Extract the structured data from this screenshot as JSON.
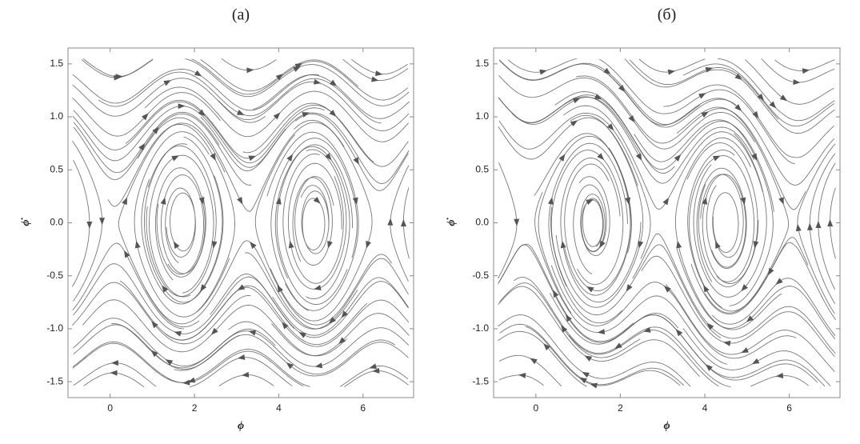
{
  "chart_data": [
    {
      "type": "streamplot",
      "title": "(a)",
      "xlabel": "ϕ",
      "ylabel": "ϕ̇",
      "xlim": [
        -1,
        7.2
      ],
      "ylim": [
        -1.65,
        1.65
      ],
      "xticks": [
        0,
        2,
        4,
        6
      ],
      "yticks": [
        {
          "value": -1.5,
          "label": "-1.5"
        },
        {
          "value": -1,
          "label": "-1.0"
        },
        {
          "value": -0.5,
          "label": "-0.5"
        },
        {
          "value": 0,
          "label": "0.0"
        },
        {
          "value": 0.5,
          "label": "0.5"
        },
        {
          "value": 1,
          "label": "1.0"
        },
        {
          "value": 1.5,
          "label": "1.5"
        }
      ],
      "color": "#555555"
    },
    {
      "type": "streamplot",
      "title": "(б)",
      "xlabel": "ϕ",
      "ylabel": "ϕ̇",
      "xlim": [
        -1,
        7.2
      ],
      "ylim": [
        -1.65,
        1.65
      ],
      "xticks": [
        0,
        2,
        4,
        6
      ],
      "yticks": [
        {
          "value": -1.5,
          "label": "-1.5"
        },
        {
          "value": -1,
          "label": "-1.0"
        },
        {
          "value": -0.5,
          "label": "-0.5"
        },
        {
          "value": 0,
          "label": "0.0"
        },
        {
          "value": 0.5,
          "label": "0.5"
        },
        {
          "value": 1,
          "label": "1.0"
        },
        {
          "value": 1.5,
          "label": "1.5"
        }
      ],
      "color": "#555555"
    }
  ]
}
